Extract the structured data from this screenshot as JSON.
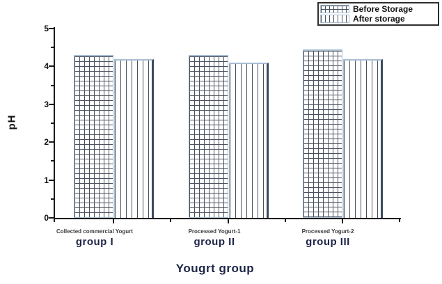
{
  "chart_data": {
    "type": "bar",
    "title": "",
    "xlabel": "Yougrt group",
    "ylabel": "pH",
    "ylim": [
      0,
      5
    ],
    "yticks": [
      0,
      1,
      2,
      3,
      4,
      5
    ],
    "y_minor_step": 0.5,
    "grid": false,
    "legend_position": "top-right",
    "categories": [
      {
        "sublabel": "Collected commercial Yogurt",
        "label": "group I"
      },
      {
        "sublabel": "Processed Yogurt-1",
        "label": "group II"
      },
      {
        "sublabel": "Processed Yogurt-2",
        "label": "group III"
      }
    ],
    "series": [
      {
        "name": "Before Storage",
        "pattern": "crosshatch",
        "values": [
          4.3,
          4.3,
          4.45
        ]
      },
      {
        "name": "After storage",
        "pattern": "vertical-lines",
        "values": [
          4.2,
          4.1,
          4.2
        ]
      }
    ]
  },
  "colors": {
    "background": "#ffffff",
    "axis_color": "#1a1a1a",
    "bar_border_light": "#a9bdd2",
    "bar_edge_dark": "#3a4a62",
    "pattern_line": "#4a505c",
    "text_primary": "#111111",
    "group_label_text": "#1d2547",
    "sublabel_text": "#3a3a3a"
  }
}
